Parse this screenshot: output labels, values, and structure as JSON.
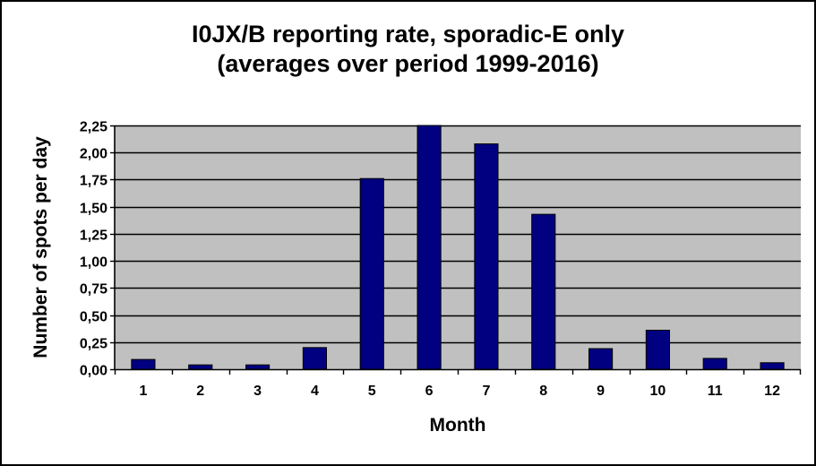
{
  "chart_data": {
    "type": "bar",
    "title_line1": "I0JX/B reporting rate, sporadic-E only",
    "title_line2": "(averages over period 1999-2016)",
    "xlabel": "Month",
    "ylabel": "Number of spots per day",
    "categories": [
      "1",
      "2",
      "3",
      "4",
      "5",
      "6",
      "7",
      "8",
      "9",
      "10",
      "11",
      "12"
    ],
    "values": [
      0.09,
      0.04,
      0.04,
      0.2,
      1.76,
      2.26,
      2.08,
      1.43,
      0.19,
      0.36,
      0.1,
      0.06
    ],
    "ylim": [
      0,
      2.25
    ],
    "yticks": [
      "0,00",
      "0,25",
      "0,50",
      "0,75",
      "1,00",
      "1,25",
      "1,50",
      "1,75",
      "2,00",
      "2,25"
    ],
    "grid": true,
    "legend": "none",
    "colors": {
      "plot_background": "#c0c0c0",
      "bar_fill": "#000080",
      "bar_stroke": "#000000",
      "gridline": "#000000"
    }
  }
}
